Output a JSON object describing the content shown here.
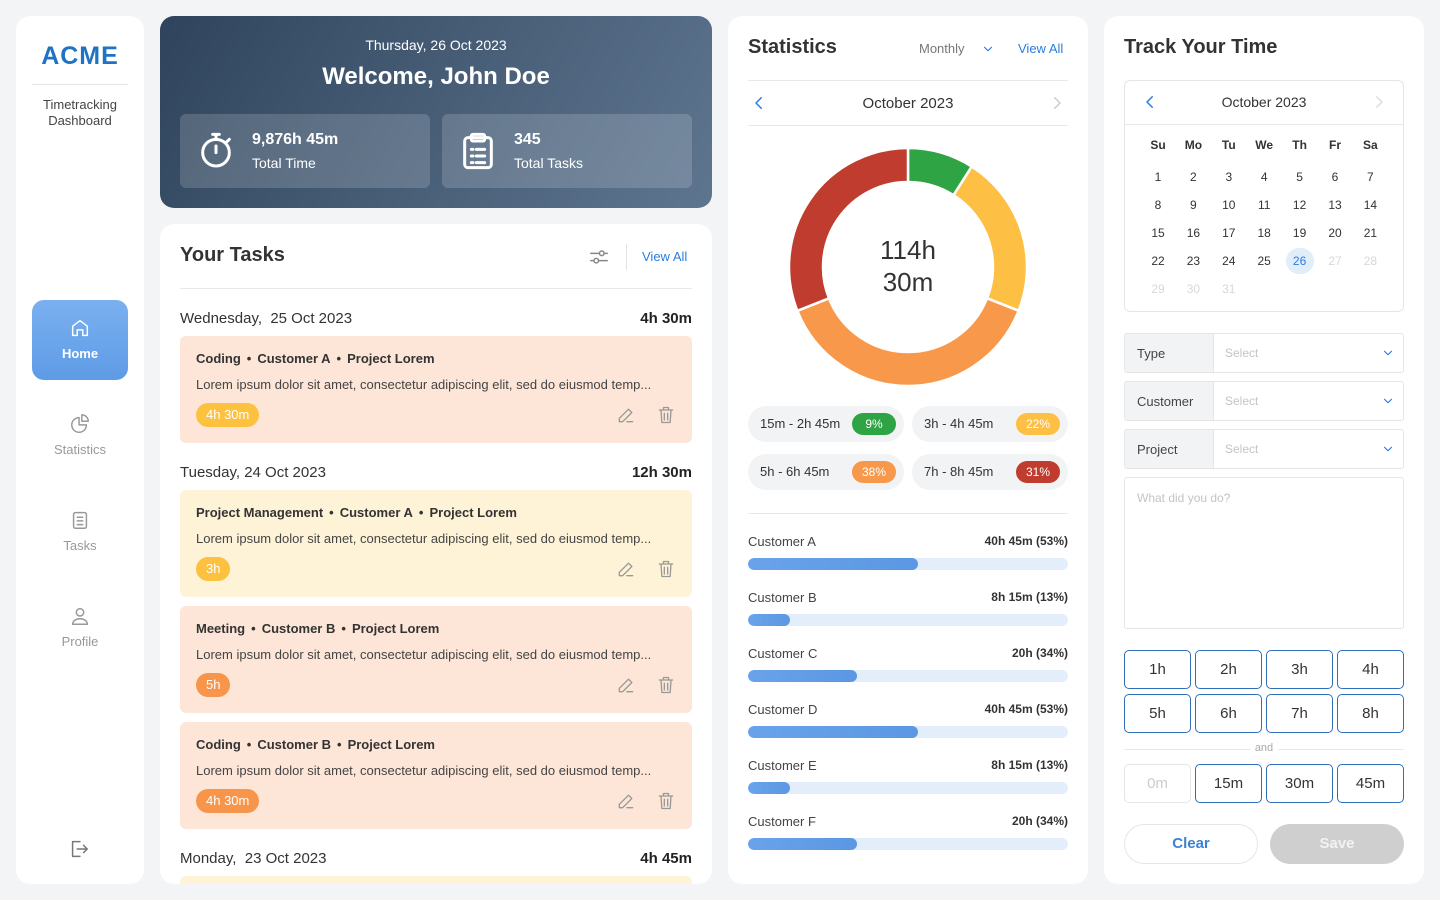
{
  "sidebar": {
    "logo": "ACME",
    "subtitle": "Timetracking Dashboard",
    "nav": [
      "Home",
      "Statistics",
      "Tasks",
      "Profile"
    ],
    "active": 0
  },
  "header": {
    "date": "Thursday, 26 Oct 2023",
    "welcome": "Welcome, John Doe",
    "stats": [
      {
        "value": "9,876h 45m",
        "label": "Total Time"
      },
      {
        "value": "345",
        "label": "Total Tasks"
      }
    ]
  },
  "tasks": {
    "title": "Your Tasks",
    "view_all": "View All",
    "days": [
      {
        "date": "Wednesday,  25 Oct 2023",
        "total": "4h 30m",
        "items": [
          {
            "type": "Coding",
            "customer": "Customer A",
            "project": "Project Lorem",
            "description": "Lorem ipsum dolor sit amet, consectetur adipiscing elit, sed do eiusmod temp...",
            "duration": "4h 30m",
            "background": "#fde6d7",
            "badge_color": "#fcc23f"
          }
        ]
      },
      {
        "date": "Tuesday, 24 Oct 2023",
        "total": "12h 30m",
        "items": [
          {
            "type": "Project Management",
            "customer": "Customer A",
            "project": "Project Lorem",
            "description": "Lorem ipsum dolor sit amet, consectetur adipiscing elit, sed do eiusmod temp...",
            "duration": "3h",
            "background": "#fef3d7",
            "badge_color": "#fcc23f"
          },
          {
            "type": "Meeting",
            "customer": "Customer B",
            "project": "Project Lorem",
            "description": "Lorem ipsum dolor sit amet, consectetur adipiscing elit, sed do eiusmod temp...",
            "duration": "5h",
            "background": "#fde6d7",
            "badge_color": "#f7964a"
          },
          {
            "type": "Coding",
            "customer": "Customer B",
            "project": "Project Lorem",
            "description": "Lorem ipsum dolor sit amet, consectetur adipiscing elit, sed do eiusmod temp...",
            "duration": "4h 30m",
            "background": "#fde6d7",
            "badge_color": "#f7964a"
          }
        ]
      },
      {
        "date": "Monday,  23 Oct 2023",
        "total": "4h 45m",
        "items": []
      }
    ]
  },
  "statistics": {
    "title": "Statistics",
    "period": "Monthly",
    "view_all": "View All",
    "month": "October 2023",
    "total": "114h 30m",
    "segments": [
      {
        "range": "15m - 2h 45m",
        "value": 9,
        "label": "9%",
        "color": "#2ea445"
      },
      {
        "range": "3h - 4h 45m",
        "value": 22,
        "label": "22%",
        "color": "#fdc044"
      },
      {
        "range": "5h - 6h 45m",
        "value": 38,
        "label": "38%",
        "color": "#f8984b"
      },
      {
        "range": "7h - 8h 45m",
        "value": 31,
        "label": "31%",
        "color": "#bf3c2f"
      }
    ],
    "customers": [
      {
        "name": "Customer A",
        "value": 53,
        "label": "40h 45m (53%)"
      },
      {
        "name": "Customer B",
        "value": 13,
        "label": "8h 15m (13%)"
      },
      {
        "name": "Customer C",
        "value": 34,
        "label": "20h (34%)"
      },
      {
        "name": "Customer D",
        "value": 53,
        "label": "40h 45m (53%)"
      },
      {
        "name": "Customer E",
        "value": 13,
        "label": "8h 15m (13%)"
      },
      {
        "name": "Customer F",
        "value": 34,
        "label": "20h (34%)"
      }
    ]
  },
  "tracker": {
    "title": "Track Your Time",
    "month": "October 2023",
    "weekdays": [
      "Su",
      "Mo",
      "Tu",
      "We",
      "Th",
      "Fr",
      "Sa"
    ],
    "days": [
      1,
      2,
      3,
      4,
      5,
      6,
      7,
      8,
      9,
      10,
      11,
      12,
      13,
      14,
      15,
      16,
      17,
      18,
      19,
      20,
      21,
      22,
      23,
      24,
      25,
      26,
      27,
      28,
      29,
      30,
      31
    ],
    "selected": 26,
    "fields": [
      {
        "label": "Type",
        "placeholder": "Select"
      },
      {
        "label": "Customer",
        "placeholder": "Select"
      },
      {
        "label": "Project",
        "placeholder": "Select"
      }
    ],
    "note_placeholder": "What did you do?",
    "hours": [
      "1h",
      "2h",
      "3h",
      "4h",
      "5h",
      "6h",
      "7h",
      "8h"
    ],
    "and": "and",
    "minutes": [
      "0m",
      "15m",
      "30m",
      "45m"
    ],
    "disabled_minute": 0,
    "clear": "Clear",
    "save": "Save"
  }
}
